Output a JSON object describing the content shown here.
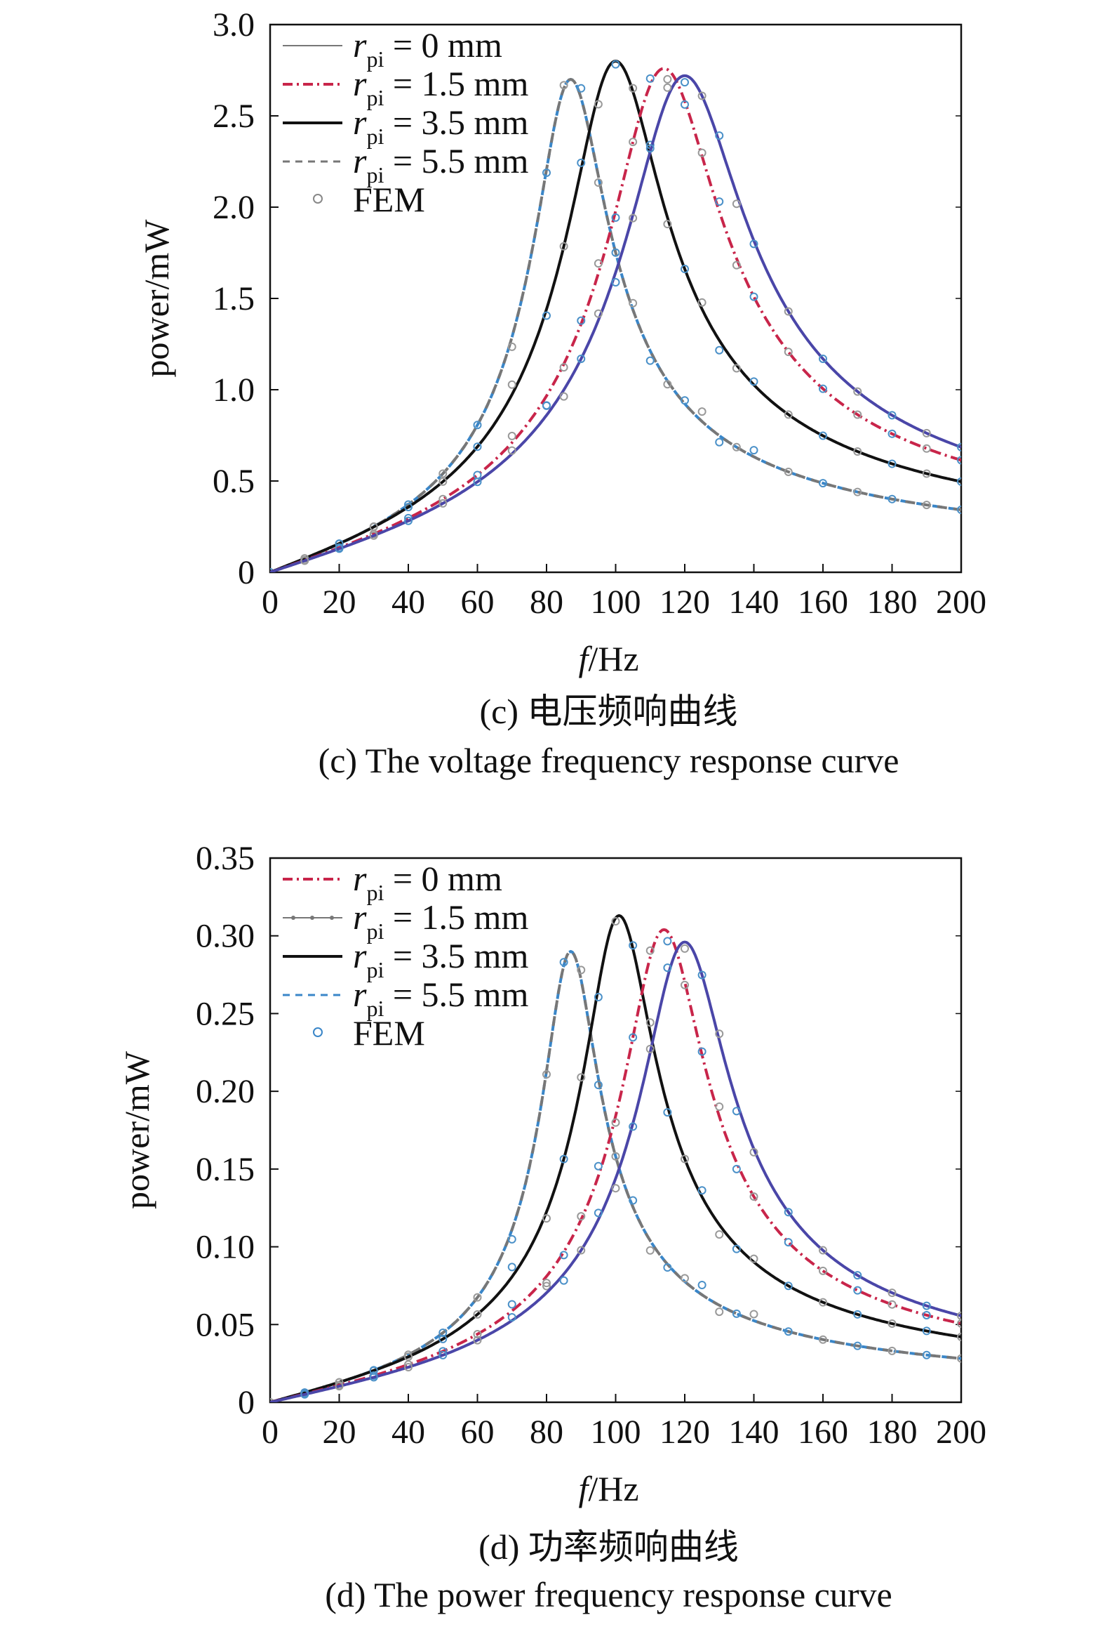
{
  "chart_data": [
    {
      "panel": "c",
      "type": "line",
      "xlabel_italic": "f",
      "xlabel_rest": "/Hz",
      "ylabel": "power/mW",
      "xlim": [
        0,
        200
      ],
      "ylim": [
        0,
        3.0
      ],
      "xticks": [
        "0",
        "20",
        "40",
        "60",
        "80",
        "100",
        "120",
        "140",
        "160",
        "180",
        "200"
      ],
      "yticks": [
        "0",
        "0.5",
        "1.0",
        "1.5",
        "2.0",
        "2.5",
        "3.0"
      ],
      "caption_cn": "(c) 电压频响曲线",
      "caption_en": "(c) The voltage frequency response curve",
      "legend": [
        {
          "r": "r",
          "sub": "pi",
          "text": " = 0 mm",
          "color": "#777777",
          "dash": "",
          "width": 2
        },
        {
          "r": "r",
          "sub": "pi",
          "text": " = 1.5 mm",
          "color": "#c8254a",
          "dash": "14,6,3,6",
          "width": 4
        },
        {
          "r": "r",
          "sub": "pi",
          "text": " = 3.5 mm",
          "color": "#111111",
          "dash": "",
          "width": 4
        },
        {
          "r": "r",
          "sub": "pi",
          "text": " = 5.5 mm",
          "color": "#777777",
          "dash": "10,8",
          "width": 3
        },
        {
          "r": "",
          "sub": "",
          "text": "FEM",
          "color": "#888888",
          "marker": "circle"
        }
      ],
      "series": [
        {
          "peak_x": 87,
          "peak_y": 2.7,
          "q": 4.2,
          "baseline": 0.012,
          "colors": [
            "#3a86c8",
            "#777777"
          ],
          "dash": "14,9",
          "width": 4
        },
        {
          "peak_x": 100,
          "peak_y": 2.8,
          "q": 3.7,
          "baseline": 0.012,
          "colors": [
            "#111111"
          ],
          "dash": "",
          "width": 4
        },
        {
          "peak_x": 114,
          "peak_y": 2.76,
          "q": 3.7,
          "baseline": 0.012,
          "colors": [
            "#c8254a"
          ],
          "dash": "16,6,3,6",
          "width": 4
        },
        {
          "peak_x": 120,
          "peak_y": 2.72,
          "q": 3.6,
          "baseline": 0.012,
          "colors": [
            "#4a46a8"
          ],
          "dash": "",
          "width": 4
        }
      ],
      "fem_x": [
        0,
        10,
        20,
        30,
        40,
        50,
        60,
        70,
        80,
        85,
        90,
        95,
        100,
        105,
        110,
        115,
        120,
        125,
        130,
        135,
        140,
        150,
        160,
        170,
        180,
        190,
        200
      ]
    },
    {
      "panel": "d",
      "type": "line",
      "xlabel_italic": "f",
      "xlabel_rest": "/Hz",
      "ylabel": "power/mW",
      "xlim": [
        0,
        200
      ],
      "ylim": [
        0,
        0.35
      ],
      "xticks": [
        "0",
        "20",
        "40",
        "60",
        "80",
        "100",
        "120",
        "140",
        "160",
        "180",
        "200"
      ],
      "yticks": [
        "0",
        "0.05",
        "0.10",
        "0.15",
        "0.20",
        "0.25",
        "0.30",
        "0.35"
      ],
      "caption_cn": "(d) 功率频响曲线",
      "caption_en": "(d) The power frequency response curve",
      "legend": [
        {
          "r": "r",
          "sub": "pi",
          "text": " = 0 mm",
          "color": "#c8254a",
          "dash": "14,6,3,6",
          "width": 4
        },
        {
          "r": "r",
          "sub": "pi",
          "text": " = 1.5 mm",
          "color": "#777777",
          "dash": "",
          "width": 2,
          "dotted": true
        },
        {
          "r": "r",
          "sub": "pi",
          "text": " = 3.5 mm",
          "color": "#111111",
          "dash": "",
          "width": 4
        },
        {
          "r": "r",
          "sub": "pi",
          "text": " = 5.5 mm",
          "color": "#3a86c8",
          "dash": "10,8",
          "width": 3
        },
        {
          "r": "",
          "sub": "",
          "text": "FEM",
          "color": "#3a86c8",
          "marker": "circle"
        }
      ],
      "series": [
        {
          "peak_x": 87,
          "peak_y": 0.29,
          "q": 5.5,
          "baseline": 0.0,
          "colors": [
            "#3a86c8",
            "#777777"
          ],
          "dash": "14,9",
          "width": 4
        },
        {
          "peak_x": 101,
          "peak_y": 0.313,
          "q": 5.0,
          "baseline": 0.0,
          "colors": [
            "#111111"
          ],
          "dash": "",
          "width": 4
        },
        {
          "peak_x": 114,
          "peak_y": 0.304,
          "q": 5.0,
          "baseline": 0.0,
          "colors": [
            "#c8254a"
          ],
          "dash": "16,6,3,6",
          "width": 4
        },
        {
          "peak_x": 120,
          "peak_y": 0.296,
          "q": 4.9,
          "baseline": 0.0,
          "colors": [
            "#4a46a8"
          ],
          "dash": "",
          "width": 4
        }
      ],
      "fem_x": [
        0,
        10,
        20,
        30,
        40,
        50,
        60,
        70,
        80,
        85,
        90,
        95,
        100,
        105,
        110,
        115,
        120,
        125,
        130,
        135,
        140,
        150,
        160,
        170,
        180,
        190,
        200
      ]
    }
  ]
}
